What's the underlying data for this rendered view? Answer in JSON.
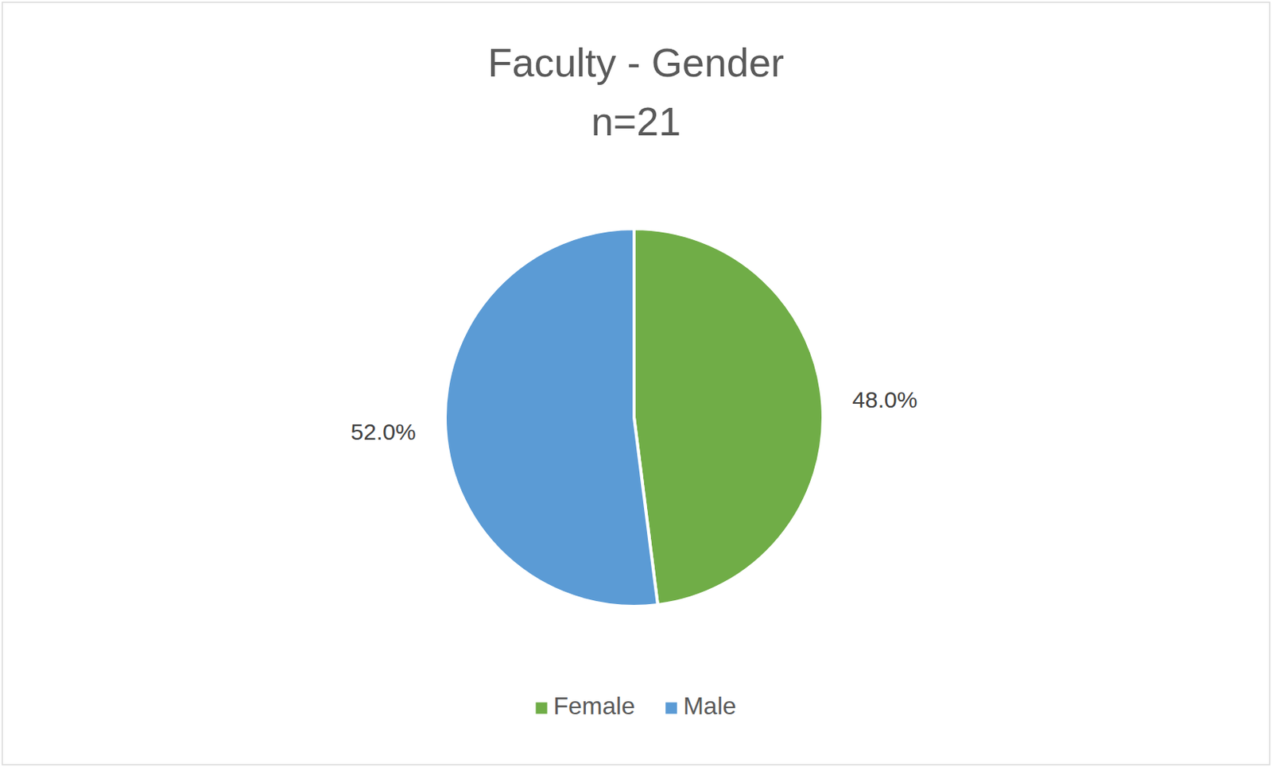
{
  "chart_data": {
    "type": "pie",
    "title": "Faculty - Gender",
    "subtitle": "n=21",
    "categories": [
      "Female",
      "Male"
    ],
    "values": [
      48,
      52
    ],
    "value_labels": [
      "48.0%",
      "52.0%"
    ],
    "colors": [
      "#70ad47",
      "#5b9bd5"
    ],
    "data_labels": true,
    "legend": "bottom"
  }
}
